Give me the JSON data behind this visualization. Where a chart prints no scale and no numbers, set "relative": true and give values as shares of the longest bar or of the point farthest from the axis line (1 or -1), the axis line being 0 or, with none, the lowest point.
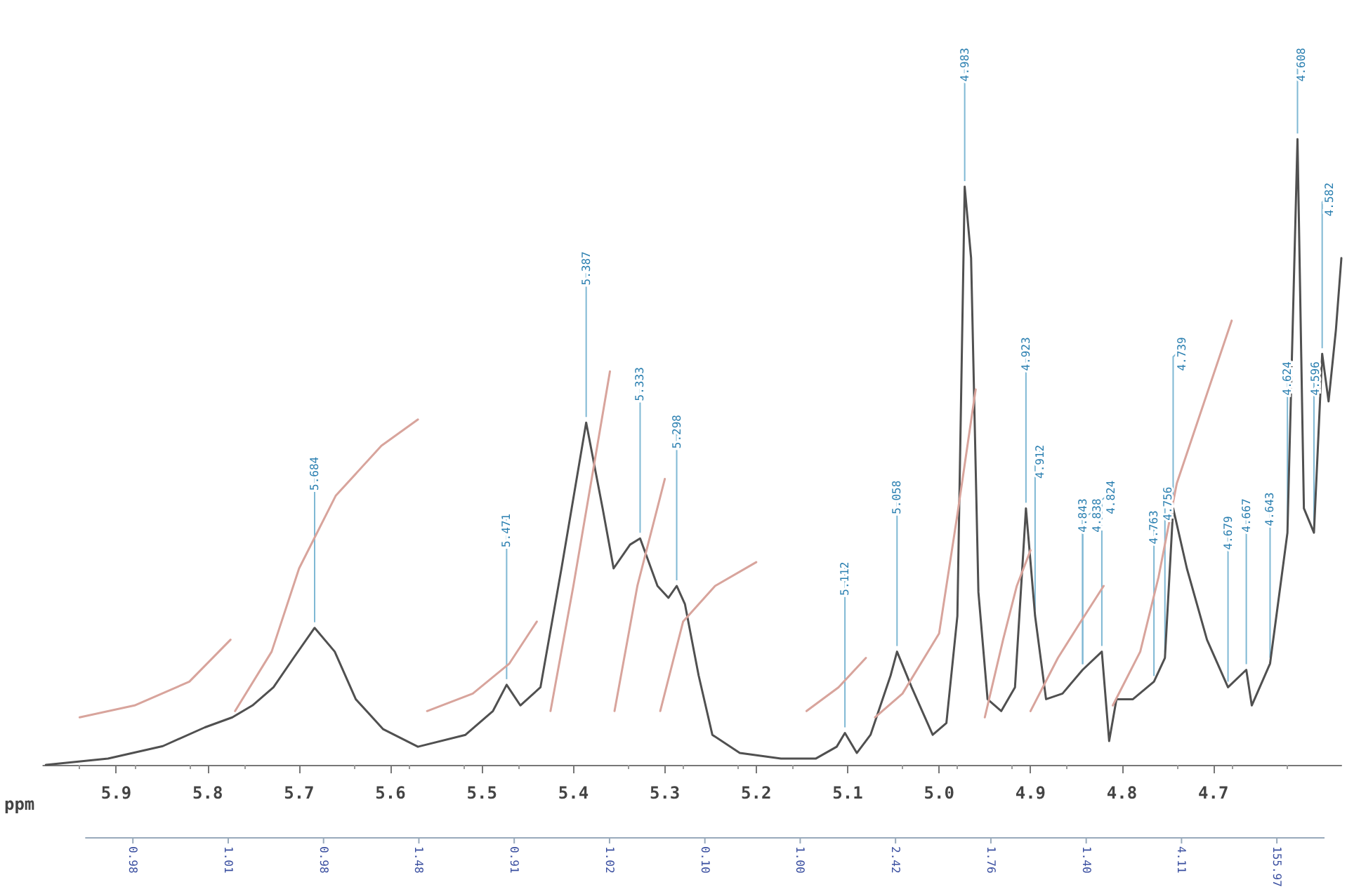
{
  "chart_data": {
    "type": "line",
    "relative": true,
    "xlabel": "ppm",
    "xlim": [
      5.98,
      4.56
    ],
    "xticks": [
      {
        "value": 5.9,
        "label": "5.9"
      },
      {
        "value": 5.8,
        "label": "5.8"
      },
      {
        "value": 5.7,
        "label": "5.7"
      },
      {
        "value": 5.6,
        "label": "5.6"
      },
      {
        "value": 5.5,
        "label": "5.5"
      },
      {
        "value": 5.4,
        "label": "5.4"
      },
      {
        "value": 5.3,
        "label": "5.3"
      },
      {
        "value": 5.2,
        "label": "5.2"
      },
      {
        "value": 5.1,
        "label": "5.1"
      },
      {
        "value": 5.0,
        "label": "5.0"
      },
      {
        "value": 4.9,
        "label": "4.9"
      },
      {
        "value": 4.8,
        "label": "4.8"
      },
      {
        "value": 4.7,
        "label": "4.7"
      }
    ],
    "marker": "none",
    "line_style": "solid",
    "series": [
      {
        "color": "#505050",
        "x": [
          5.977,
          5.909,
          5.849,
          5.803,
          5.773,
          5.751,
          5.728,
          5.706,
          5.683,
          5.661,
          5.638,
          5.608,
          5.57,
          5.518,
          5.488,
          5.473,
          5.458,
          5.436,
          5.413,
          5.386,
          5.368,
          5.356,
          5.338,
          5.327,
          5.308,
          5.296,
          5.287,
          5.278,
          5.263,
          5.248,
          5.218,
          5.173,
          5.135,
          5.112,
          5.103,
          5.09,
          5.075,
          5.053,
          5.046,
          5.03,
          5.007,
          4.992,
          4.98,
          4.972,
          4.965,
          4.957,
          4.947,
          4.932,
          4.917,
          4.905,
          4.895,
          4.883,
          4.865,
          4.843,
          4.822,
          4.814,
          4.806,
          4.788,
          4.765,
          4.753,
          4.744,
          4.729,
          4.707,
          4.684,
          4.664,
          4.658,
          4.638,
          4.619,
          4.608,
          4.601,
          4.59,
          4.581,
          4.574,
          4.566,
          4.56
        ],
        "values": [
          0,
          0.01,
          0.03,
          0.06,
          0.076,
          0.095,
          0.124,
          0.171,
          0.219,
          0.181,
          0.105,
          0.057,
          0.029,
          0.048,
          0.086,
          0.128,
          0.095,
          0.124,
          0.314,
          0.547,
          0.41,
          0.314,
          0.352,
          0.362,
          0.286,
          0.267,
          0.286,
          0.257,
          0.143,
          0.048,
          0.019,
          0.01,
          0.01,
          0.029,
          0.051,
          0.019,
          0.048,
          0.143,
          0.181,
          0.124,
          0.048,
          0.067,
          0.238,
          0.924,
          0.81,
          0.276,
          0.105,
          0.086,
          0.124,
          0.41,
          0.238,
          0.105,
          0.114,
          0.152,
          0.181,
          0.038,
          0.105,
          0.105,
          0.133,
          0.171,
          0.41,
          0.314,
          0.2,
          0.124,
          0.152,
          0.095,
          0.162,
          0.371,
          1,
          0.41,
          0.371,
          0.657,
          0.581,
          0.695,
          0.81
        ]
      },
      {
        "color": "#d8a49c",
        "x": [
          5.94,
          5.88,
          5.82,
          5.775
        ],
        "values": [
          0.076,
          0.095,
          0.133,
          0.2
        ]
      },
      {
        "color": "#d8a49c",
        "x": [
          5.77,
          5.73,
          5.7,
          5.66,
          5.61,
          5.57
        ],
        "values": [
          0.086,
          0.181,
          0.314,
          0.43,
          0.51,
          0.552
        ]
      },
      {
        "color": "#d8a49c",
        "x": [
          5.56,
          5.51,
          5.47,
          5.44
        ],
        "values": [
          0.086,
          0.114,
          0.162,
          0.229
        ]
      },
      {
        "color": "#d8a49c",
        "x": [
          5.425,
          5.4,
          5.38,
          5.36
        ],
        "values": [
          0.086,
          0.286,
          0.457,
          0.629
        ]
      },
      {
        "color": "#d8a49c",
        "x": [
          5.355,
          5.33,
          5.3
        ],
        "values": [
          0.086,
          0.286,
          0.457
        ]
      },
      {
        "color": "#d8a49c",
        "x": [
          5.305,
          5.28,
          5.245,
          5.2
        ],
        "values": [
          0.086,
          0.229,
          0.286,
          0.324
        ]
      },
      {
        "color": "#d8a49c",
        "x": [
          5.145,
          5.11,
          5.08
        ],
        "values": [
          0.086,
          0.124,
          0.171
        ]
      },
      {
        "color": "#d8a49c",
        "x": [
          5.07,
          5.04,
          5.0,
          4.98,
          4.96
        ],
        "values": [
          0.076,
          0.114,
          0.21,
          0.4,
          0.6
        ]
      },
      {
        "color": "#d8a49c",
        "x": [
          4.95,
          4.93,
          4.915,
          4.9
        ],
        "values": [
          0.076,
          0.2,
          0.286,
          0.343
        ]
      },
      {
        "color": "#d8a49c",
        "x": [
          4.9,
          4.87,
          4.845,
          4.82
        ],
        "values": [
          0.086,
          0.171,
          0.229,
          0.286
        ]
      },
      {
        "color": "#d8a49c",
        "x": [
          4.81,
          4.78,
          4.76,
          4.74,
          4.71,
          4.68
        ],
        "values": [
          0.095,
          0.181,
          0.3,
          0.45,
          0.58,
          0.71
        ]
      }
    ],
    "annotations": [
      {
        "text": "5.684",
        "x": 5.683,
        "y": 0.219
      },
      {
        "text": "5.471",
        "x": 5.473,
        "y": 0.128
      },
      {
        "text": "5.387",
        "x": 5.386,
        "y": 0.547
      },
      {
        "text": "5.333",
        "x": 5.327,
        "y": 0.362
      },
      {
        "text": "5.298",
        "x": 5.287,
        "y": 0.286
      },
      {
        "text": "5.112",
        "x": 5.103,
        "y": 0.051
      },
      {
        "text": "5.058",
        "x": 5.046,
        "y": 0.181
      },
      {
        "text": "4.983",
        "x": 4.972,
        "y": 0.924
      },
      {
        "text": "4.923",
        "x": 4.905,
        "y": 0.41
      },
      {
        "text": "4.912",
        "x": 4.895,
        "y": 0.238
      },
      {
        "text": "4.843",
        "x": 4.843,
        "y": 0.152
      },
      {
        "text": "4.838",
        "x": 4.843,
        "y": 0.152
      },
      {
        "text": "4.824",
        "x": 4.822,
        "y": 0.181
      },
      {
        "text": "4.763",
        "x": 4.765,
        "y": 0.133
      },
      {
        "text": "4.756",
        "x": 4.753,
        "y": 0.171
      },
      {
        "text": "4.739",
        "x": 4.744,
        "y": 0.41
      },
      {
        "text": "4.679",
        "x": 4.684,
        "y": 0.124
      },
      {
        "text": "4.667",
        "x": 4.664,
        "y": 0.152
      },
      {
        "text": "4.643",
        "x": 4.638,
        "y": 0.162
      },
      {
        "text": "4.624",
        "x": 4.619,
        "y": 0.371
      },
      {
        "text": "4.608",
        "x": 4.608,
        "y": 1
      },
      {
        "text": "4.596",
        "x": 4.59,
        "y": 0.371
      },
      {
        "text": "4.582",
        "x": 4.581,
        "y": 0.657
      },
      "0.98",
      "1.01",
      "0.98",
      "1.48",
      "0.91",
      "1.02",
      "0.10",
      "1.00",
      "2.42",
      "1.76",
      "1.40",
      "4.11",
      "155.97"
    ],
    "grid": false
  }
}
